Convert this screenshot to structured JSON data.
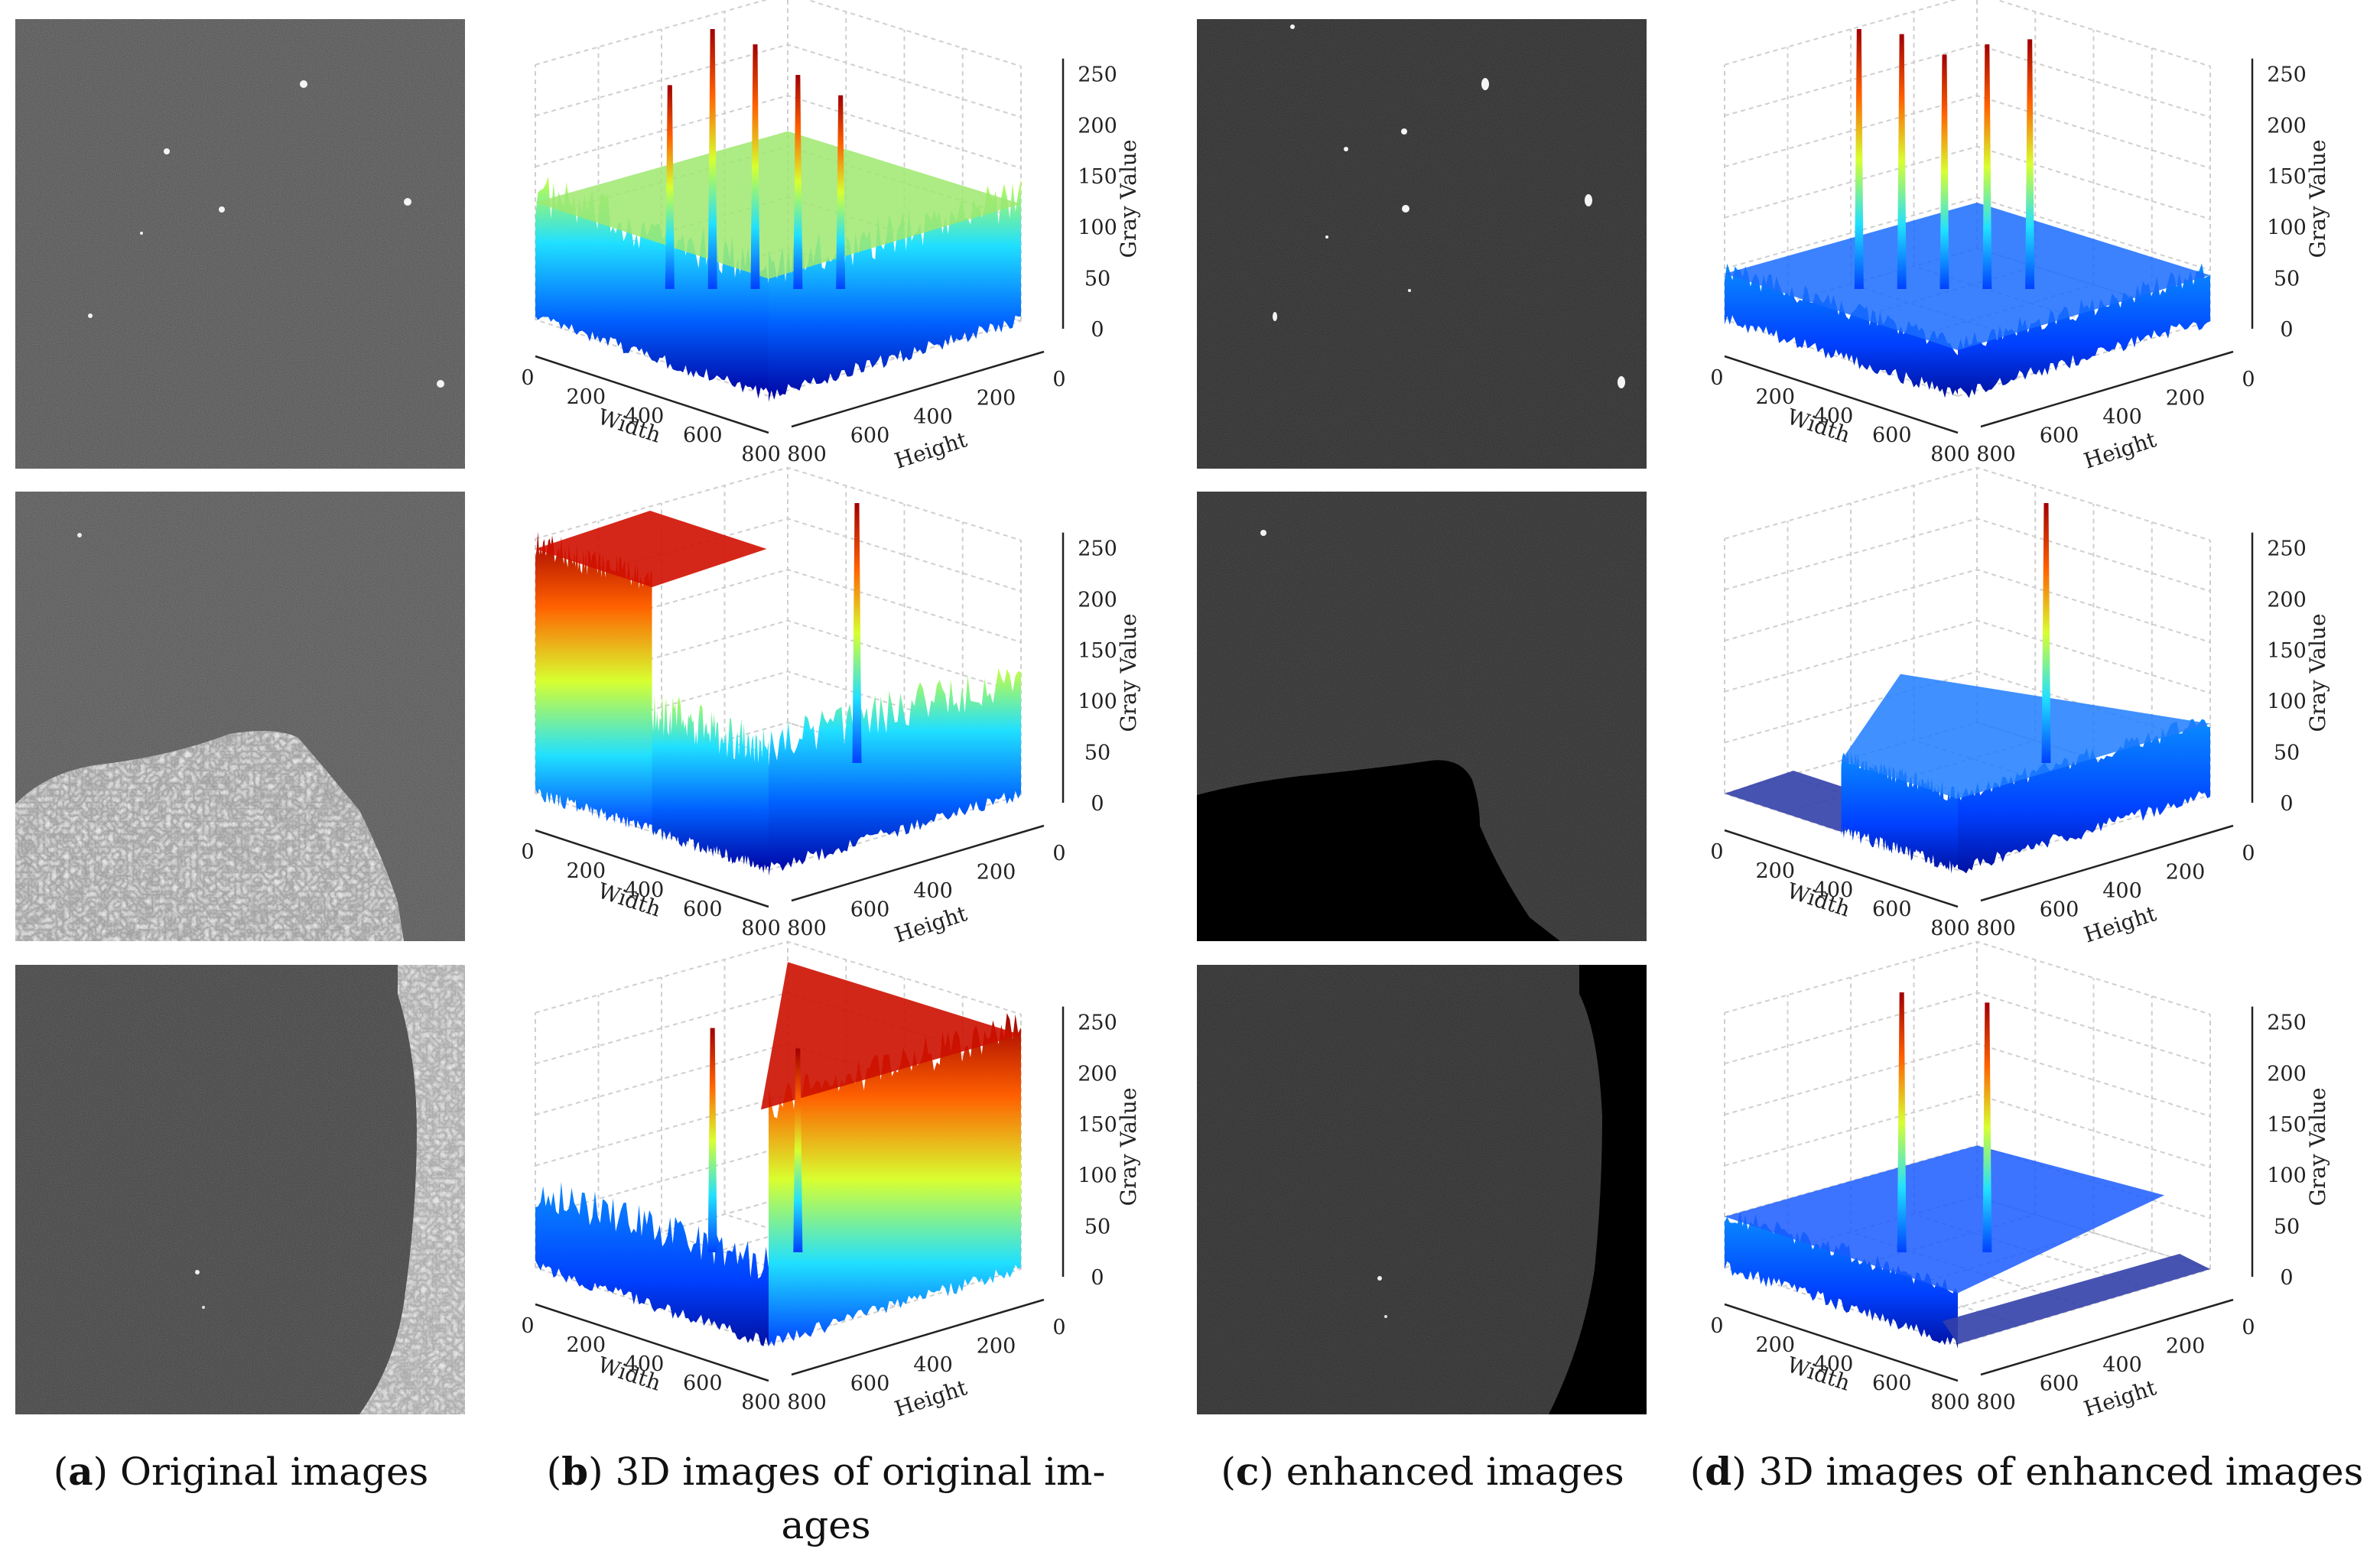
{
  "figure": {
    "captions": [
      {
        "letter": "a",
        "text": "Original images"
      },
      {
        "letter": "b",
        "text": "3D images of original im-",
        "text2": "ages"
      },
      {
        "letter": "c",
        "text": "enhanced images"
      },
      {
        "letter": "d",
        "text": "3D images of enhanced images"
      }
    ],
    "rows": 3
  },
  "chart_data": {
    "type": "surface3d",
    "axis_labels": {
      "x": "Width",
      "y": "Height",
      "z": "Gray Value"
    },
    "x_ticks": [
      "0",
      "200",
      "400",
      "600",
      "800"
    ],
    "y_ticks": [
      "800",
      "600",
      "400",
      "200",
      "0"
    ],
    "z_ticks": [
      "0",
      "50",
      "100",
      "150",
      "200",
      "250"
    ],
    "zlim": [
      0,
      255
    ],
    "plots": [
      {
        "column": "b",
        "row": 1,
        "description": "original",
        "base_level": 115,
        "peaks": [
          200,
          255,
          240,
          210,
          190
        ]
      },
      {
        "column": "b",
        "row": 2,
        "description": "original",
        "base_level": 110,
        "land_level": 240,
        "peaks": [
          255
        ]
      },
      {
        "column": "b",
        "row": 3,
        "description": "original",
        "base_level": 70,
        "land_level": 230,
        "peaks": [
          220,
          200
        ]
      },
      {
        "column": "d",
        "row": 1,
        "description": "enhanced",
        "base_level": 45,
        "peaks": [
          255,
          250,
          230,
          240,
          245
        ]
      },
      {
        "column": "d",
        "row": 2,
        "description": "enhanced",
        "base_level": 70,
        "land_level": 0,
        "peaks": [
          255
        ]
      },
      {
        "column": "d",
        "row": 3,
        "description": "enhanced",
        "base_level": 50,
        "land_level": 0,
        "peaks": [
          255,
          245
        ]
      }
    ]
  }
}
